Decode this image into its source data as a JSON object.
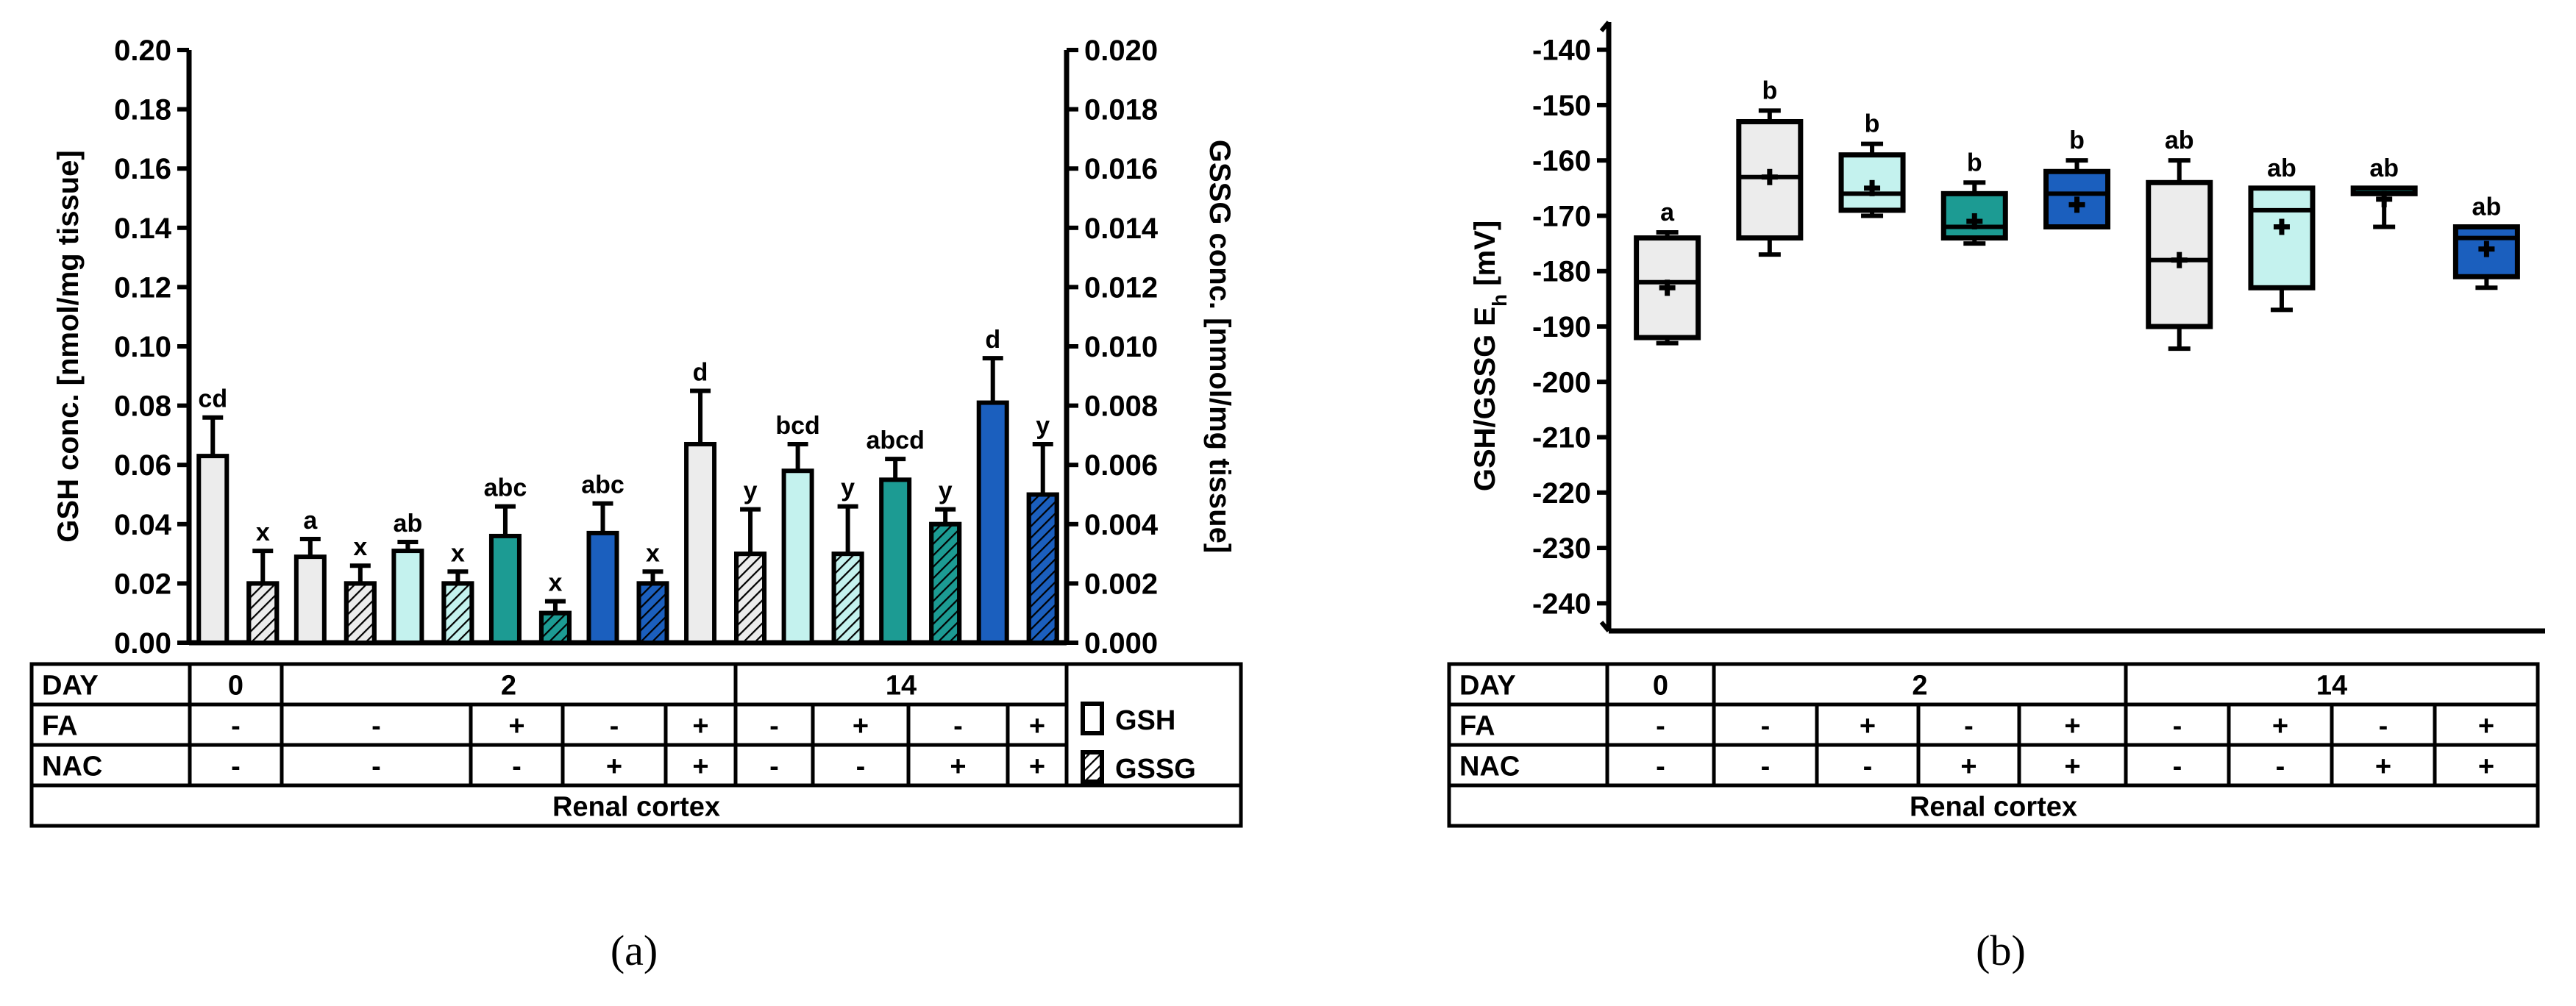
{
  "figure": {
    "panel_a_label": "(a)",
    "panel_b_label": "(b)",
    "table": {
      "row_labels": {
        "day": "DAY",
        "fa": "FA",
        "nac": "NAC"
      },
      "day_groups": [
        "0",
        "2",
        "14"
      ],
      "fa": [
        "-",
        "-",
        "+",
        "-",
        "+",
        "-",
        "+",
        "-",
        "+"
      ],
      "nac": [
        "-",
        "-",
        "-",
        "+",
        "+",
        "-",
        "-",
        "+",
        "+"
      ],
      "tissue": "Renal cortex"
    },
    "legend": {
      "gsh": "GSH",
      "gssg": "GSSG"
    }
  },
  "colors": {
    "group_fills": [
      "#ececec",
      "#ececec",
      "#c4f2ee",
      "#1c9b93",
      "#1b5fbe",
      "#ececec",
      "#c4f2ee",
      "#1c9b93",
      "#1b5fbe"
    ],
    "stroke": "#000000"
  },
  "chart_data": [
    {
      "type": "bar",
      "title": "",
      "ylabel": "GSH conc. [nmol/mg tissue]",
      "y2label": "GSSG conc. [nmol/mg tissue]",
      "ylim": [
        0,
        0.2
      ],
      "y2lim": [
        0,
        0.02
      ],
      "yticks": [
        "0.00",
        "0.02",
        "0.04",
        "0.06",
        "0.08",
        "0.10",
        "0.12",
        "0.14",
        "0.16",
        "0.18",
        "0.20"
      ],
      "y2ticks": [
        "0.000",
        "0.002",
        "0.004",
        "0.006",
        "0.008",
        "0.010",
        "0.012",
        "0.014",
        "0.016",
        "0.018",
        "0.020"
      ],
      "categories": [
        "D0",
        "D2 -/-",
        "D2 +/-",
        "D2 -/+",
        "D2 +/+",
        "D14 -/-",
        "D14 +/-",
        "D14 -/+",
        "D14 +/+"
      ],
      "series": [
        {
          "name": "GSH",
          "axis": "left",
          "values": [
            0.063,
            0.029,
            0.031,
            0.036,
            0.037,
            0.067,
            0.058,
            0.055,
            0.081
          ],
          "errors": [
            0.013,
            0.006,
            0.003,
            0.01,
            0.01,
            0.018,
            0.009,
            0.007,
            0.015
          ],
          "labels": [
            "cd",
            "a",
            "ab",
            "abc",
            "abc",
            "d",
            "bcd",
            "abcd",
            "d"
          ]
        },
        {
          "name": "GSSG",
          "axis": "right",
          "values": [
            0.002,
            0.002,
            0.002,
            0.001,
            0.002,
            0.003,
            0.003,
            0.004,
            0.005
          ],
          "errors": [
            0.0011,
            0.0006,
            0.0004,
            0.0004,
            0.0004,
            0.0015,
            0.0016,
            0.0005,
            0.0017
          ],
          "labels": [
            "x",
            "x",
            "x",
            "x",
            "x",
            "y",
            "y",
            "y",
            "y"
          ]
        }
      ]
    },
    {
      "type": "box",
      "title": "",
      "ylabel": "GSH/GSSG E",
      "ylabel_sub": "h",
      "ylabel_unit": " [mV]",
      "ylim": [
        -245,
        -135
      ],
      "yticks": [
        "-140",
        "-150",
        "-160",
        "-170",
        "-180",
        "-190",
        "-200",
        "-210",
        "-220",
        "-230",
        "-240"
      ],
      "categories": [
        "D0",
        "D2 -/-",
        "D2 +/-",
        "D2 -/+",
        "D2 +/+",
        "D14 -/-",
        "D14 +/-",
        "D14 -/+",
        "D14 +/+"
      ],
      "boxes": [
        {
          "min": -193,
          "q1": -192,
          "median": -182,
          "q3": -174,
          "max": -173,
          "mean": -183
        },
        {
          "min": -177,
          "q1": -174,
          "median": -163,
          "q3": -153,
          "max": -151,
          "mean": -163
        },
        {
          "min": -170,
          "q1": -169,
          "median": -166,
          "q3": -159,
          "max": -157,
          "mean": -165
        },
        {
          "min": -175,
          "q1": -174,
          "median": -172,
          "q3": -166,
          "max": -164,
          "mean": -171
        },
        {
          "min": -172,
          "q1": -172,
          "median": -166,
          "q3": -162,
          "max": -160,
          "mean": -168
        },
        {
          "min": -194,
          "q1": -190,
          "median": -178,
          "q3": -164,
          "max": -160,
          "mean": -178
        },
        {
          "min": -187,
          "q1": -183,
          "median": -169,
          "q3": -165,
          "max": -165,
          "mean": -172
        },
        {
          "min": -172,
          "q1": -166,
          "median": -166,
          "q3": -165,
          "max": -165,
          "mean": -167
        },
        {
          "min": -183,
          "q1": -181,
          "median": -174,
          "q3": -172,
          "max": -172,
          "mean": -176
        }
      ],
      "labels": [
        "a",
        "b",
        "b",
        "b",
        "b",
        "ab",
        "ab",
        "ab",
        "ab"
      ]
    }
  ]
}
